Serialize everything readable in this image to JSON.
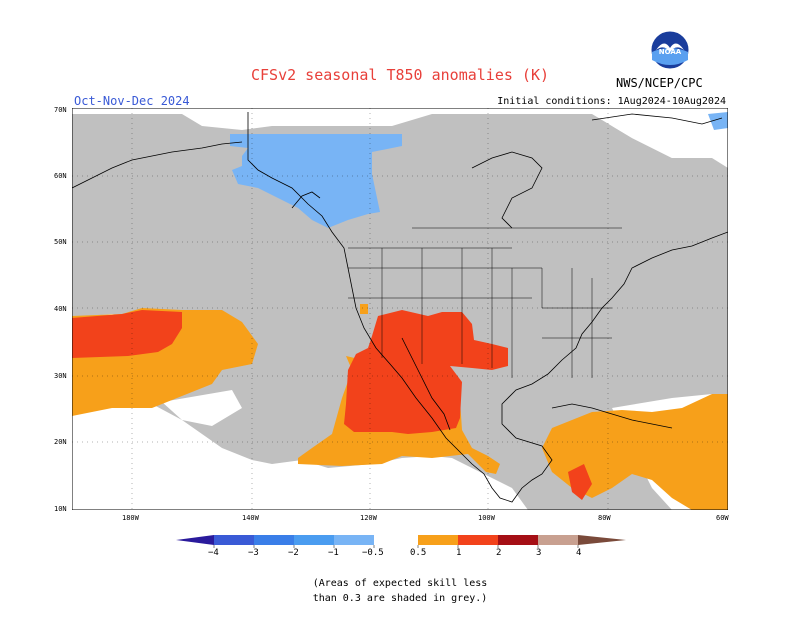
{
  "header": {
    "title": "CFSv2 seasonal T850 anomalies (K)",
    "season": "Oct-Nov-Dec 2024",
    "initial_conditions": "Initial conditions: 1Aug2024-10Aug2024",
    "agency": "NWS/NCEP/CPC",
    "logo_text": "NOAA"
  },
  "map": {
    "lat_labels": [
      "70N",
      "60N",
      "50N",
      "40N",
      "30N",
      "20N",
      "10N"
    ],
    "lon_labels": [
      "180W",
      "140W",
      "120W",
      "100W",
      "80W",
      "60W"
    ],
    "skill_mask_color": "#c0c0c0",
    "anomaly_colors": {
      "-1 to -0.5": "#78b4f5",
      "0.5 to 1": "#f7a01a",
      "1 to 2": "#f2421b"
    }
  },
  "colorbar": {
    "labels": [
      "−4",
      "−3",
      "−2",
      "−1",
      "−0.5",
      "0.5",
      "1",
      "2",
      "3",
      "4"
    ],
    "colors": [
      "#2a1a9c",
      "#3a5ad6",
      "#3a7ee8",
      "#4a9cf0",
      "#78b4f5",
      "#ffffff",
      "#f7a01a",
      "#f2421b",
      "#a50f15",
      "#c8a090",
      "#7a4a3a"
    ]
  },
  "footnote": {
    "line1": "(Areas of expected skill less",
    "line2": "than 0.3 are shaded in grey.)"
  }
}
